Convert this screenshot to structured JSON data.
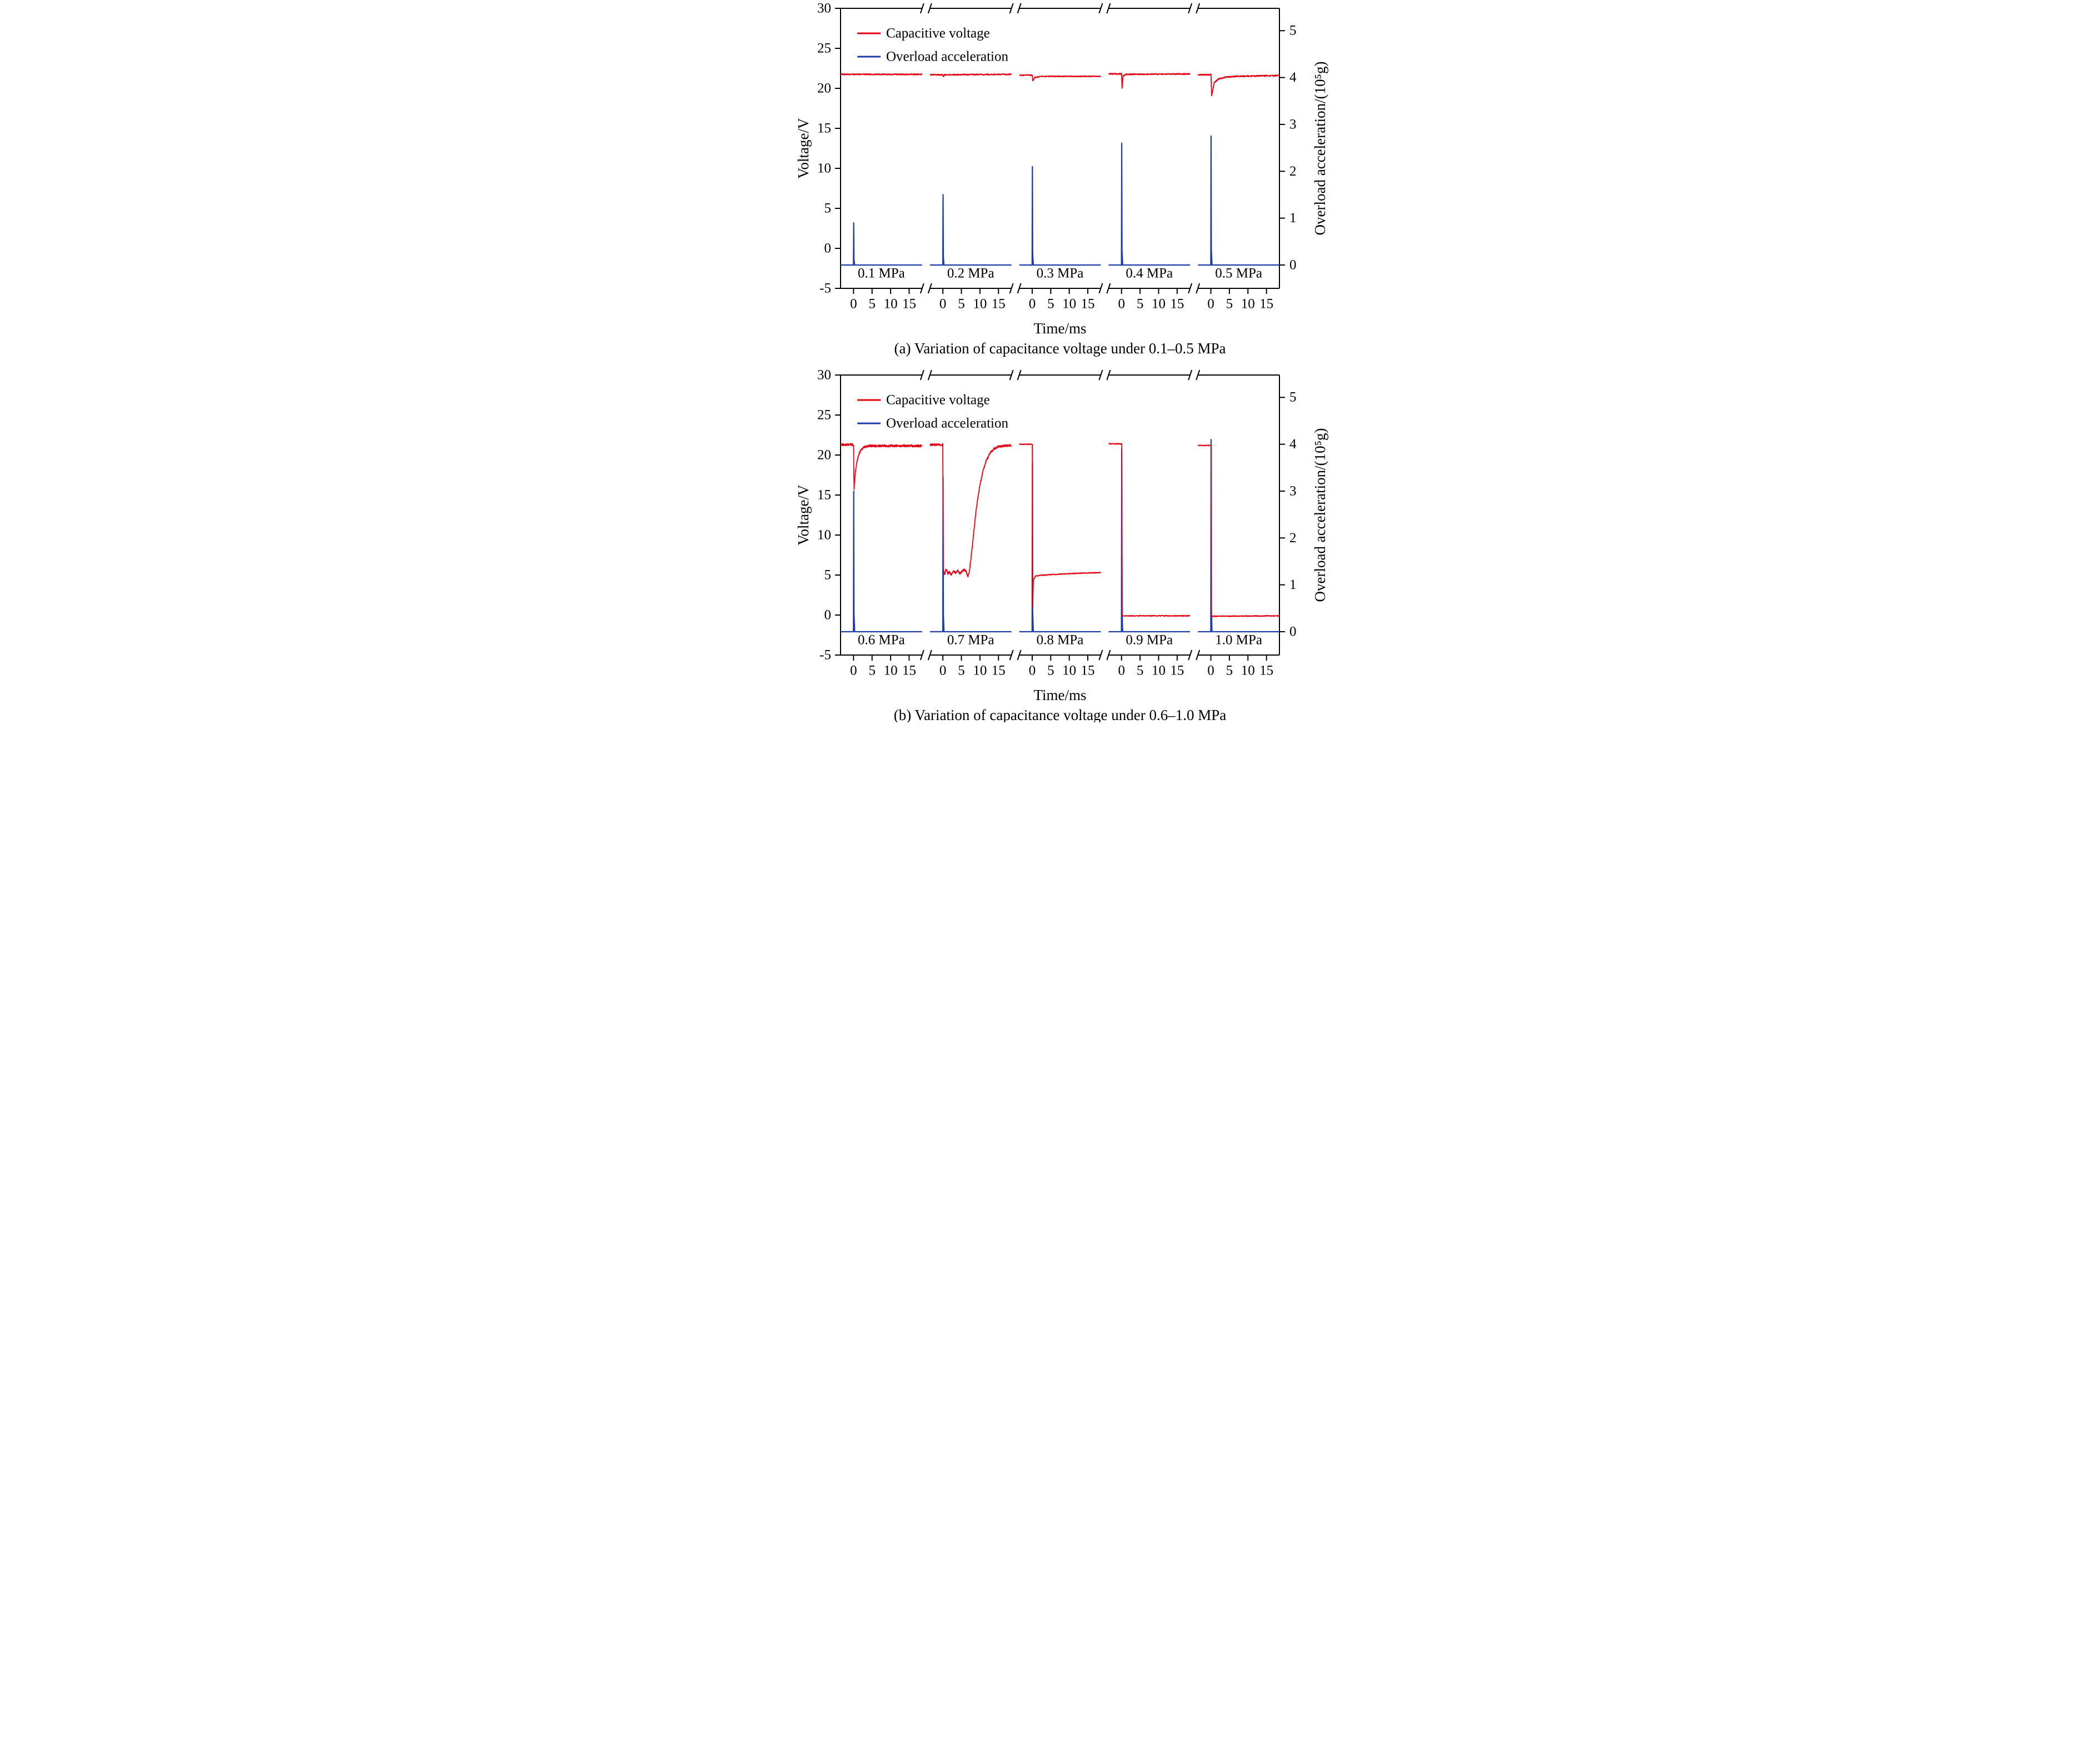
{
  "figure": {
    "colors": {
      "red": "#e60012",
      "blue": "#1f3da6",
      "axis": "#000000",
      "background": "#ffffff"
    }
  },
  "chart_data": [
    {
      "type": "line",
      "panel": "a",
      "caption": "(a) Variation of capacitance voltage under 0.1–0.5 MPa",
      "xlabel": "Time/ms",
      "ylabel_left": "Voltage/V",
      "ylabel_right": "Overload acceleration/(10⁵g)",
      "legend": [
        "Capacitive voltage",
        "Overload acceleration"
      ],
      "axes": {
        "left_ticks": [
          30,
          25,
          20,
          15,
          10,
          5,
          0,
          -5
        ],
        "left_range": [
          -5,
          30
        ],
        "right_ticks": [
          5,
          4,
          3,
          2,
          1,
          0
        ],
        "right_zero_at_left_v": -2.08,
        "left_v_per_right_unit": 5.857,
        "x_ticks": [
          0,
          5,
          10,
          15
        ],
        "x_range": [
          -3.5,
          18.5
        ],
        "grid": false,
        "broken_x_axis": true
      },
      "segments": [
        {
          "pressure": "0.1 MPa",
          "overload_peak_1e5g": 0.9,
          "voltage_points_t_v": [
            [
              -3.5,
              21.75
            ],
            [
              18.5,
              21.75
            ]
          ],
          "noise_v": 0.07
        },
        {
          "pressure": "0.2 MPa",
          "overload_peak_1e5g": 1.5,
          "voltage_points_t_v": [
            [
              -3.5,
              21.7
            ],
            [
              -0.05,
              21.7
            ],
            [
              0.12,
              21.4
            ],
            [
              0.4,
              21.7
            ],
            [
              18.5,
              21.75
            ]
          ],
          "noise_v": 0.07
        },
        {
          "pressure": "0.3 MPa",
          "overload_peak_1e5g": 2.1,
          "voltage_points_t_v": [
            [
              -3.5,
              21.65
            ],
            [
              0,
              21.65
            ],
            [
              0.18,
              20.9
            ],
            [
              0.7,
              21.35
            ],
            [
              2.5,
              21.5
            ],
            [
              18.5,
              21.5
            ]
          ],
          "noise_v": 0.06
        },
        {
          "pressure": "0.4 MPa",
          "overload_peak_1e5g": 2.6,
          "voltage_points_t_v": [
            [
              -3.5,
              21.8
            ],
            [
              0.02,
              21.8
            ],
            [
              0.14,
              20.0
            ],
            [
              0.4,
              21.55
            ],
            [
              1.2,
              21.75
            ],
            [
              18.5,
              21.8
            ]
          ],
          "noise_v": 0.07
        },
        {
          "pressure": "0.5 MPa",
          "overload_peak_1e5g": 2.75,
          "voltage_points_t_v": [
            [
              -3.5,
              21.7
            ],
            [
              0.02,
              21.7
            ],
            [
              0.22,
              19.1
            ],
            [
              0.9,
              20.7
            ],
            [
              2,
              21.15
            ],
            [
              4,
              21.4
            ],
            [
              7,
              21.5
            ],
            [
              18.5,
              21.6
            ]
          ],
          "noise_v": 0.08
        }
      ]
    },
    {
      "type": "line",
      "panel": "b",
      "caption": "(b) Variation of capacitance voltage under 0.6–1.0 MPa",
      "xlabel": "Time/ms",
      "ylabel_left": "Voltage/V",
      "ylabel_right": "Overload acceleration/(10⁵g)",
      "legend": [
        "Capacitive voltage",
        "Overload acceleration"
      ],
      "axes": {
        "left_ticks": [
          30,
          25,
          20,
          15,
          10,
          5,
          0,
          -5
        ],
        "left_range": [
          -5,
          30
        ],
        "right_ticks": [
          5,
          4,
          3,
          2,
          1,
          0
        ],
        "right_zero_at_left_v": -2.08,
        "left_v_per_right_unit": 5.857,
        "x_ticks": [
          0,
          5,
          10,
          15
        ],
        "x_range": [
          -3.5,
          18.5
        ],
        "grid": false,
        "broken_x_axis": true
      },
      "segments": [
        {
          "pressure": "0.6 MPa",
          "overload_peak_1e5g": 3.0,
          "voltage_points_t_v": [
            [
              -3.5,
              21.3
            ],
            [
              0,
              21.3
            ],
            [
              0.15,
              15.8
            ],
            [
              0.5,
              17.9
            ],
            [
              1,
              19.4
            ],
            [
              1.8,
              20.5
            ],
            [
              2.8,
              21.0
            ],
            [
              4.2,
              21.15
            ],
            [
              18.5,
              21.15
            ]
          ],
          "noise_v": 0.14
        },
        {
          "pressure": "0.7 MPa",
          "overload_peak_1e5g": 3.3,
          "voltage_points_t_v": [
            [
              -3.5,
              21.3
            ],
            [
              -0.02,
              21.3
            ],
            [
              0.12,
              5.7
            ],
            [
              0.5,
              5.1
            ],
            [
              0.9,
              5.8
            ],
            [
              1.3,
              5.2
            ],
            [
              1.8,
              5.4
            ],
            [
              2.3,
              5.0
            ],
            [
              2.8,
              5.5
            ],
            [
              3.4,
              5.3
            ],
            [
              4,
              5.6
            ],
            [
              4.6,
              5.2
            ],
            [
              5.2,
              5.5
            ],
            [
              5.8,
              5.7
            ],
            [
              6.3,
              5.4
            ],
            [
              6.8,
              4.8
            ],
            [
              7.2,
              5.6
            ],
            [
              7.6,
              7.2
            ],
            [
              8.2,
              9.8
            ],
            [
              9,
              13.2
            ],
            [
              9.8,
              15.8
            ],
            [
              10.8,
              18.0
            ],
            [
              11.8,
              19.4
            ],
            [
              12.8,
              20.3
            ],
            [
              13.8,
              20.8
            ],
            [
              15,
              21.05
            ],
            [
              16.5,
              21.15
            ],
            [
              18.5,
              21.2
            ]
          ],
          "noise_v": 0.13
        },
        {
          "pressure": "0.8 MPa",
          "overload_peak_1e5g": 3.6,
          "voltage_points_t_v": [
            [
              -3.5,
              21.35
            ],
            [
              0.02,
              21.35
            ],
            [
              0.14,
              1.0
            ],
            [
              0.3,
              4.3
            ],
            [
              0.8,
              4.85
            ],
            [
              2,
              4.95
            ],
            [
              5,
              5.05
            ],
            [
              9,
              5.15
            ],
            [
              14,
              5.25
            ],
            [
              18.5,
              5.3
            ]
          ],
          "noise_v": 0.05
        },
        {
          "pressure": "0.9 MPa",
          "overload_peak_1e5g": 3.9,
          "voltage_points_t_v": [
            [
              -3.5,
              21.4
            ],
            [
              0.06,
              21.4
            ],
            [
              0.18,
              -0.1
            ],
            [
              18.5,
              -0.1
            ]
          ],
          "noise_v": 0.05
        },
        {
          "pressure": "1.0 MPa",
          "overload_peak_1e5g": 4.1,
          "voltage_points_t_v": [
            [
              -3.5,
              21.2
            ],
            [
              0.06,
              21.2
            ],
            [
              0.18,
              -0.15
            ],
            [
              18.5,
              -0.1
            ]
          ],
          "noise_v": 0.05
        }
      ]
    }
  ]
}
